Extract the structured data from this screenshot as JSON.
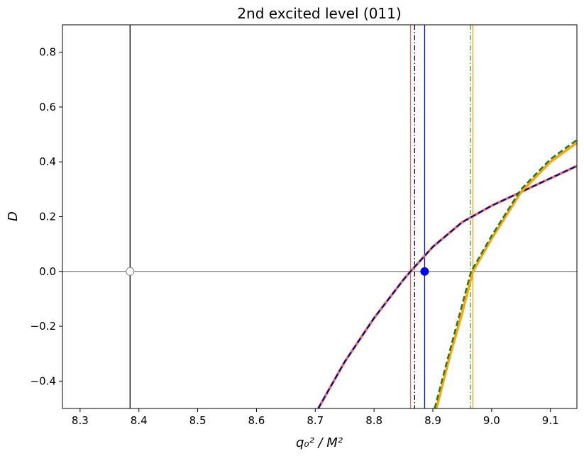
{
  "chart_data": {
    "type": "line",
    "title": "2nd excited level (011)",
    "xlabel": "q₀² / M²",
    "ylabel": "D",
    "xlim": [
      8.27,
      9.145
    ],
    "ylim": [
      -0.5,
      0.9
    ],
    "xticks": [
      8.3,
      8.4,
      8.5,
      8.6,
      8.7,
      8.8,
      8.9,
      {
        "value": 9,
        "label": "9.0"
      },
      9.1
    ],
    "yticks": [
      {
        "value": -0.4,
        "label": "−0.4"
      },
      {
        "value": -0.2,
        "label": "−0.2"
      },
      {
        "value": 0,
        "label": "0.0"
      },
      0.2,
      0.4,
      0.6,
      0.8
    ],
    "series": [
      {
        "color": "#e07070",
        "style": "solid",
        "width": 3.5,
        "x": [
          8.705,
          8.75,
          8.8,
          8.85,
          8.862,
          8.9,
          8.95,
          9.0,
          9.05,
          9.1,
          9.145
        ],
        "values": [
          -0.5,
          -0.33,
          -0.17,
          -0.03,
          0,
          0.09,
          0.18,
          0.24,
          0.29,
          0.34,
          0.385
        ]
      },
      {
        "color": "#000080",
        "style": "dashed",
        "width": 2,
        "x": [
          8.705,
          8.75,
          8.8,
          8.85,
          8.862,
          8.9,
          8.95,
          9.0,
          9.05,
          9.1,
          9.145
        ],
        "values": [
          -0.5,
          -0.33,
          -0.17,
          -0.03,
          0,
          0.09,
          0.18,
          0.24,
          0.29,
          0.34,
          0.385
        ]
      },
      {
        "color": "#ffa500",
        "style": "solid",
        "width": 3.5,
        "x": [
          8.906,
          8.93,
          8.95,
          8.968,
          9.0,
          9.05,
          9.1,
          9.145
        ],
        "values": [
          -0.5,
          -0.3,
          -0.15,
          0,
          0.12,
          0.29,
          0.4,
          0.47
        ]
      },
      {
        "color": "#1f7a1f",
        "style": "dashed",
        "width": 2.5,
        "x": [
          8.903,
          8.93,
          8.95,
          8.965,
          9.0,
          9.05,
          9.1,
          9.145
        ],
        "values": [
          -0.5,
          -0.28,
          -0.12,
          0,
          0.13,
          0.3,
          0.41,
          0.48
        ]
      }
    ],
    "vlines": [
      {
        "x": 8.385,
        "color": "#000000",
        "style": "solid"
      },
      {
        "x": 8.862,
        "color": "#e07070",
        "style": "solid"
      },
      {
        "x": 8.869,
        "color": "#000000",
        "style": "dashdot"
      },
      {
        "x": 8.886,
        "color": "#0000ff",
        "style": "solid"
      },
      {
        "x": 8.964,
        "color": "#2ca02c",
        "style": "dashdot"
      },
      {
        "x": 8.968,
        "color": "#ffa500",
        "style": "solid"
      }
    ],
    "hline": {
      "y": 0,
      "color": "#808080"
    },
    "points": [
      {
        "x": 8.385,
        "y": 0,
        "color": "#808080",
        "fill": "#ffffff"
      },
      {
        "x": 8.886,
        "y": 0,
        "color": "#0000ff",
        "fill": "#0000ff"
      }
    ]
  }
}
